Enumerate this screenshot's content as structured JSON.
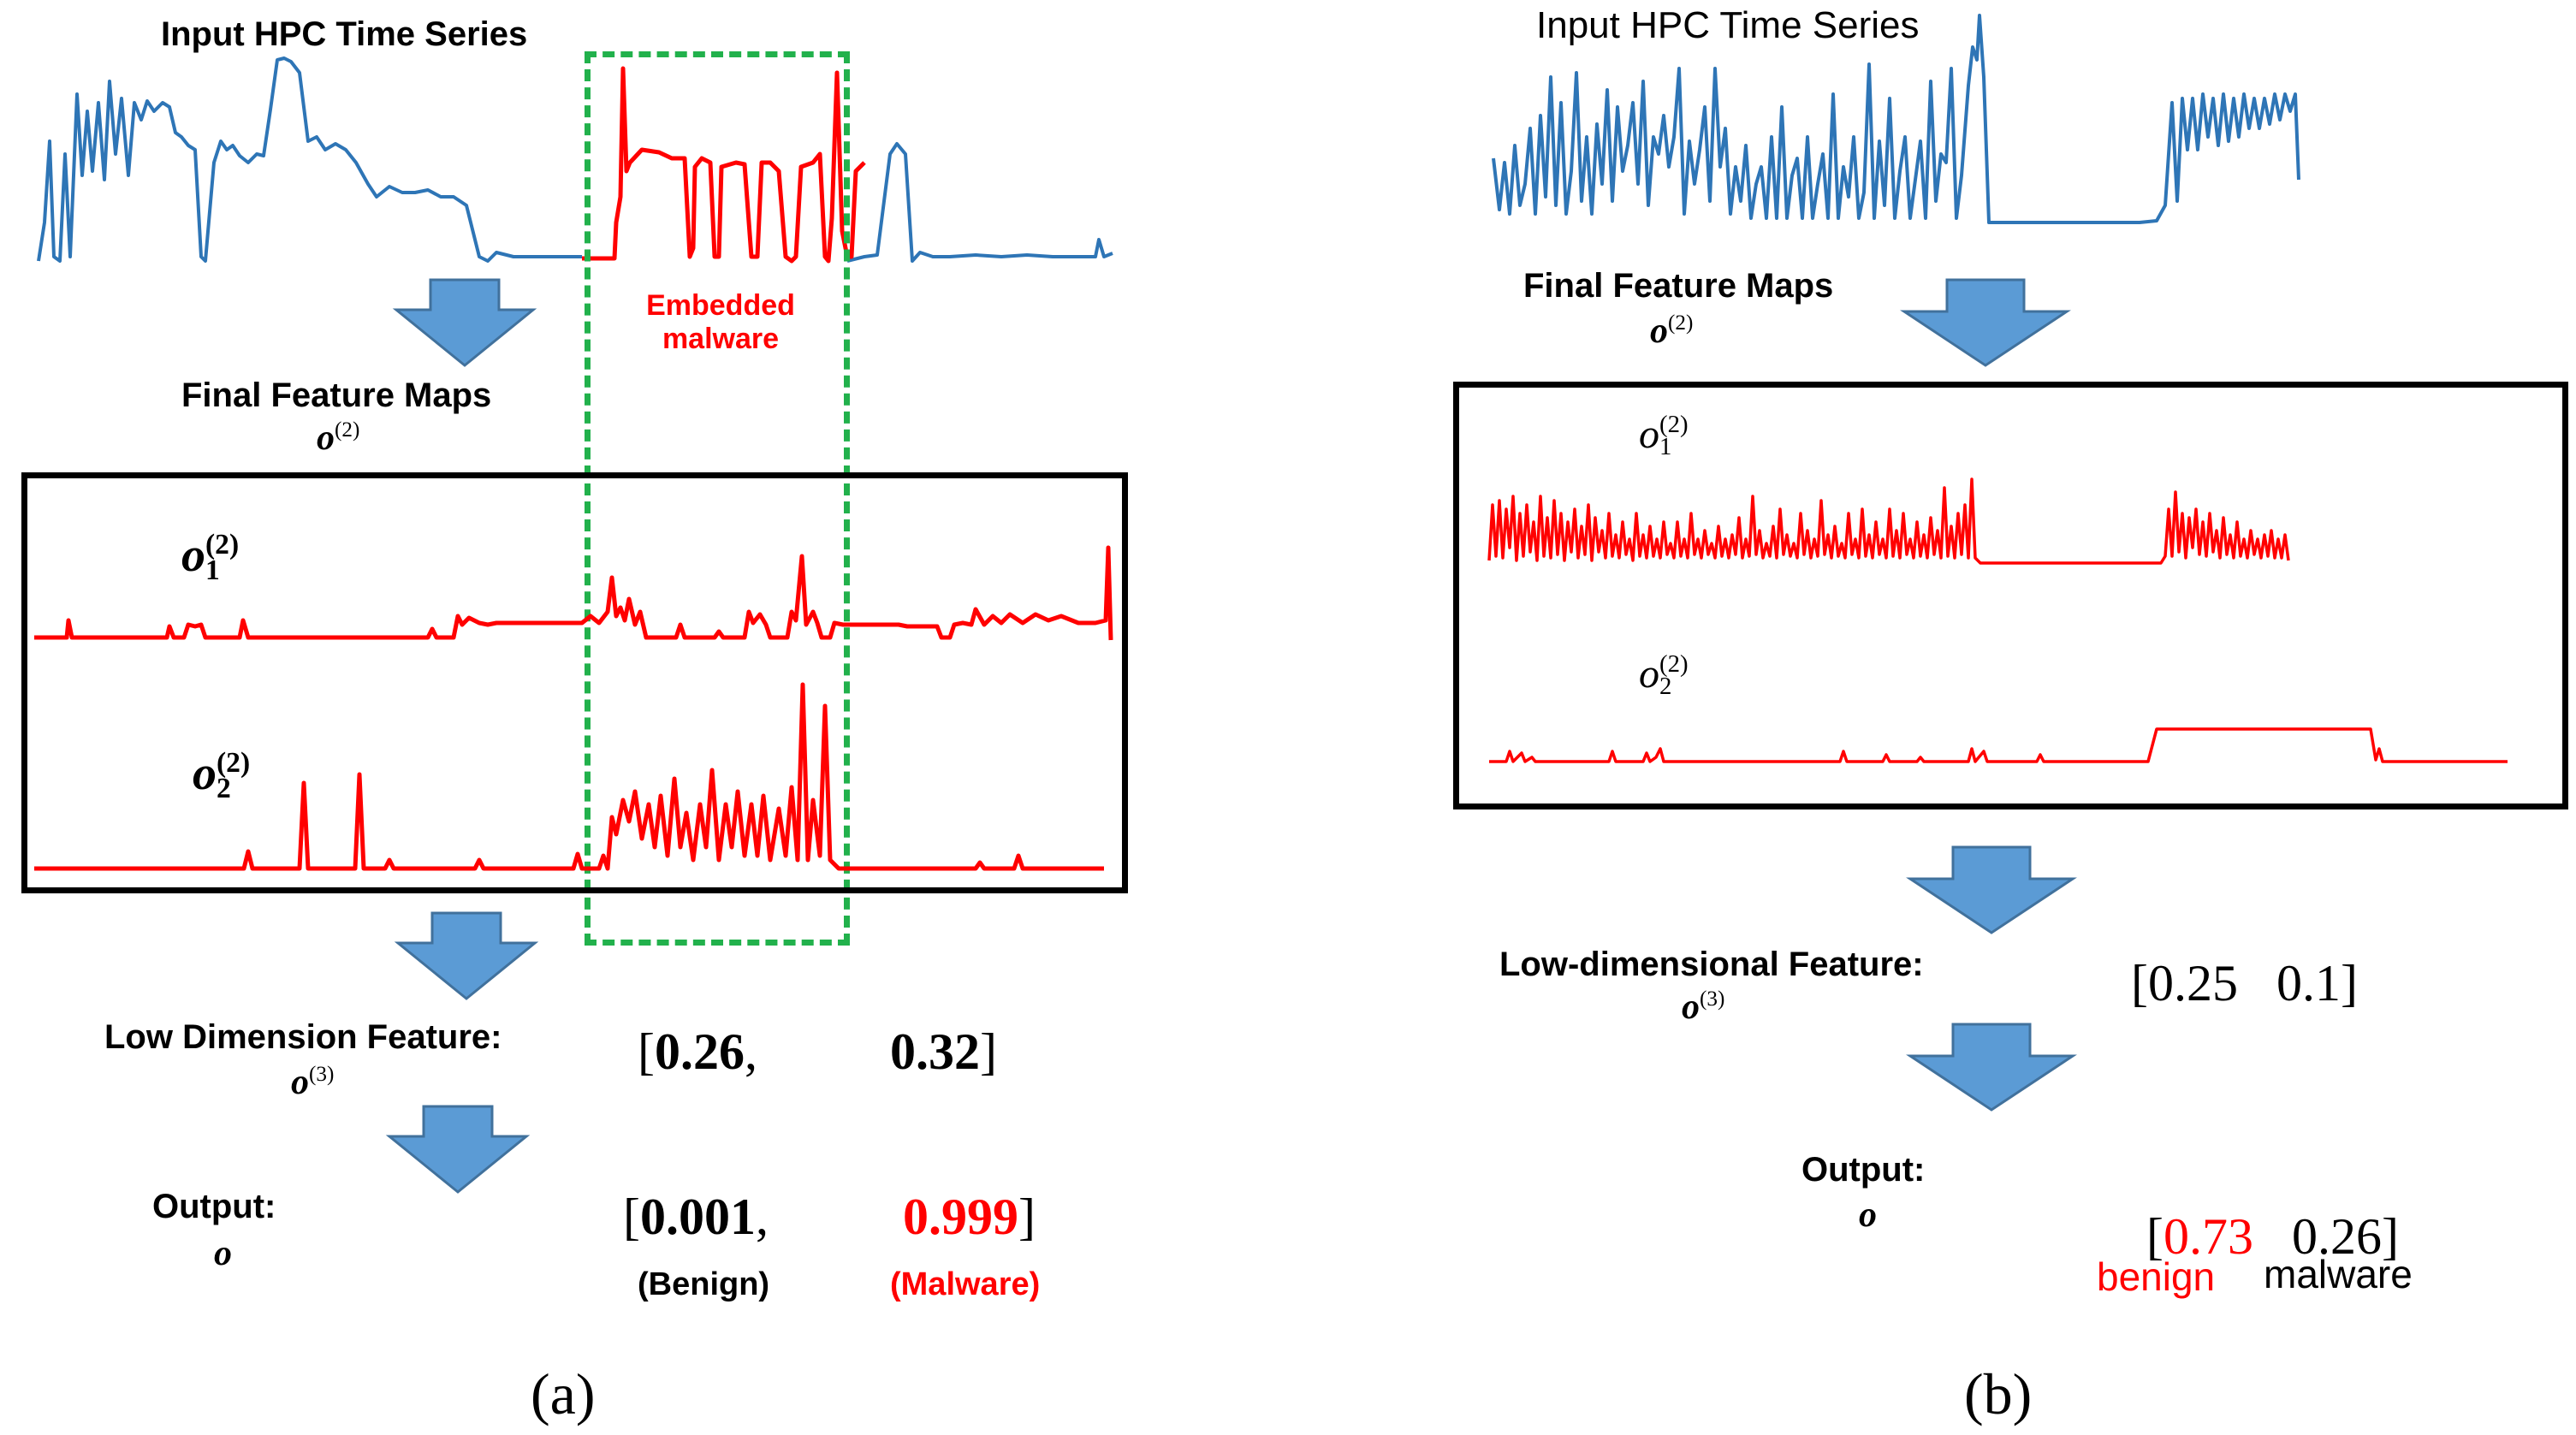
{
  "panel_a": {
    "input_title": "Input HPC Time Series",
    "embedded_label_line1": "Embedded",
    "embedded_label_line2": "malware",
    "feature_maps_title": "Final Feature Maps",
    "o2_symbol": "o",
    "o2_sup": "(2)",
    "map1_symbol": "o",
    "map1_sub": "1",
    "map1_sup": "(2)",
    "map2_symbol": "o",
    "map2_sub": "2",
    "map2_sup": "(2)",
    "low_dim_title": "Low Dimension Feature:",
    "o3_symbol": "o",
    "o3_sup": "(3)",
    "low_dim_open": "[",
    "low_dim_v1": "0.26",
    "low_dim_comma": ",",
    "low_dim_v2": "0.32",
    "low_dim_close": "]",
    "output_title": "Output:",
    "output_symbol": "o",
    "output_open": "[",
    "output_v1": "0.001",
    "output_comma": ",",
    "output_v2": "0.999",
    "output_close": "]",
    "label_benign": "(Benign)",
    "label_malware": "(Malware)",
    "caption": "(a)"
  },
  "panel_b": {
    "input_title": "Input HPC Time Series",
    "feature_maps_title": "Final Feature Maps",
    "o2_symbol": "o",
    "o2_sup": "(2)",
    "map1_symbol": "o",
    "map1_sub": "1",
    "map1_sup": "(2)",
    "map2_symbol": "o",
    "map2_sub": "2",
    "map2_sup": "(2)",
    "low_dim_title": "Low-dimensional Feature:",
    "o3_symbol": "o",
    "o3_sup": "(3)",
    "low_dim_values": "[0.25   0.1]",
    "output_title": "Output:",
    "output_symbol": "o",
    "output_open": "[",
    "output_v1": "0.73",
    "output_v2": "0.26]",
    "label_benign": "benign",
    "label_malware": "malware",
    "caption": "(b)"
  },
  "colors": {
    "series_blue": "#2e75b6",
    "feature_red": "#ff0000",
    "arrow_fill": "#5b9bd5",
    "dashed_green": "#22b14c"
  }
}
